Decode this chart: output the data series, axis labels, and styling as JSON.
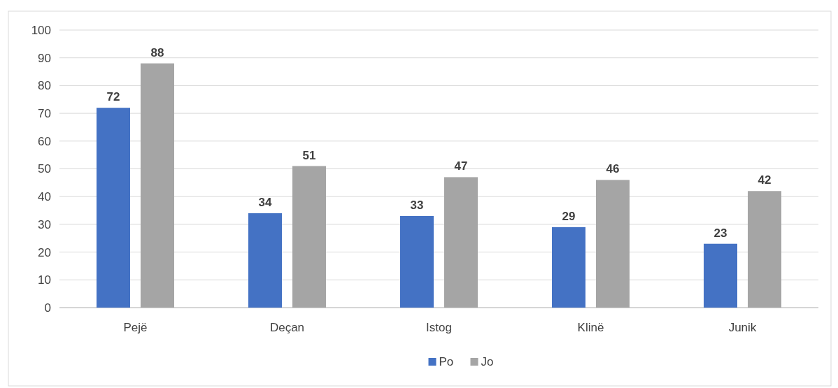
{
  "chart_data": {
    "type": "bar",
    "categories": [
      "Pejë",
      "Deçan",
      "Istog",
      "Klinë",
      "Junik"
    ],
    "series": [
      {
        "name": "Po",
        "color": "#4472c4",
        "values": [
          72,
          34,
          33,
          29,
          23
        ]
      },
      {
        "name": "Jo",
        "color": "#a5a5a5",
        "values": [
          88,
          51,
          47,
          46,
          42
        ]
      }
    ],
    "ylim": [
      0,
      100
    ],
    "yticks": [
      0,
      10,
      20,
      30,
      40,
      50,
      60,
      70,
      80,
      90,
      100
    ],
    "grid": "y",
    "legend": "bottom",
    "data_labels": true
  }
}
